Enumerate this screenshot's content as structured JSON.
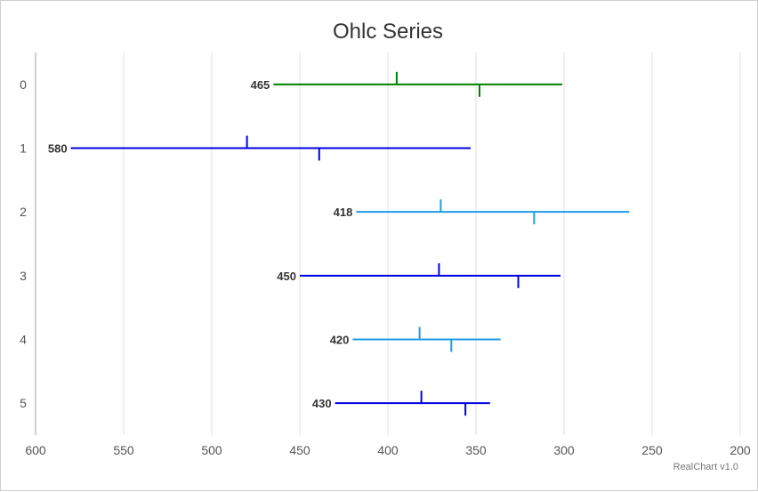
{
  "chart_data": {
    "type": "ohlc",
    "title": "Ohlc Series",
    "orientation": "horizontal",
    "x_reversed": true,
    "xlim": [
      200,
      600
    ],
    "x_ticks": [
      600,
      550,
      500,
      450,
      400,
      350,
      300,
      250,
      200
    ],
    "categories": [
      "0",
      "1",
      "2",
      "3",
      "4",
      "5"
    ],
    "points": [
      {
        "category": "0",
        "open": 395,
        "high": 465,
        "low": 301,
        "close": 348,
        "label": "465",
        "color": "#008000"
      },
      {
        "category": "1",
        "open": 480,
        "high": 580,
        "low": 353,
        "close": 439,
        "label": "580",
        "color": "#0000e0"
      },
      {
        "category": "2",
        "open": 370,
        "high": 418,
        "low": 263,
        "close": 317,
        "label": "418",
        "color": "#1e9be6"
      },
      {
        "category": "3",
        "open": 371,
        "high": 450,
        "low": 302,
        "close": 326,
        "label": "450",
        "color": "#0000e0"
      },
      {
        "category": "4",
        "open": 382,
        "high": 420,
        "low": 336,
        "close": 364,
        "label": "420",
        "color": "#1e9be6"
      },
      {
        "category": "5",
        "open": 381,
        "high": 430,
        "low": 342,
        "close": 356,
        "label": "430",
        "color": "#0000e0"
      }
    ],
    "grid": true,
    "legend": "none"
  },
  "credit": "RealChart v1.0"
}
